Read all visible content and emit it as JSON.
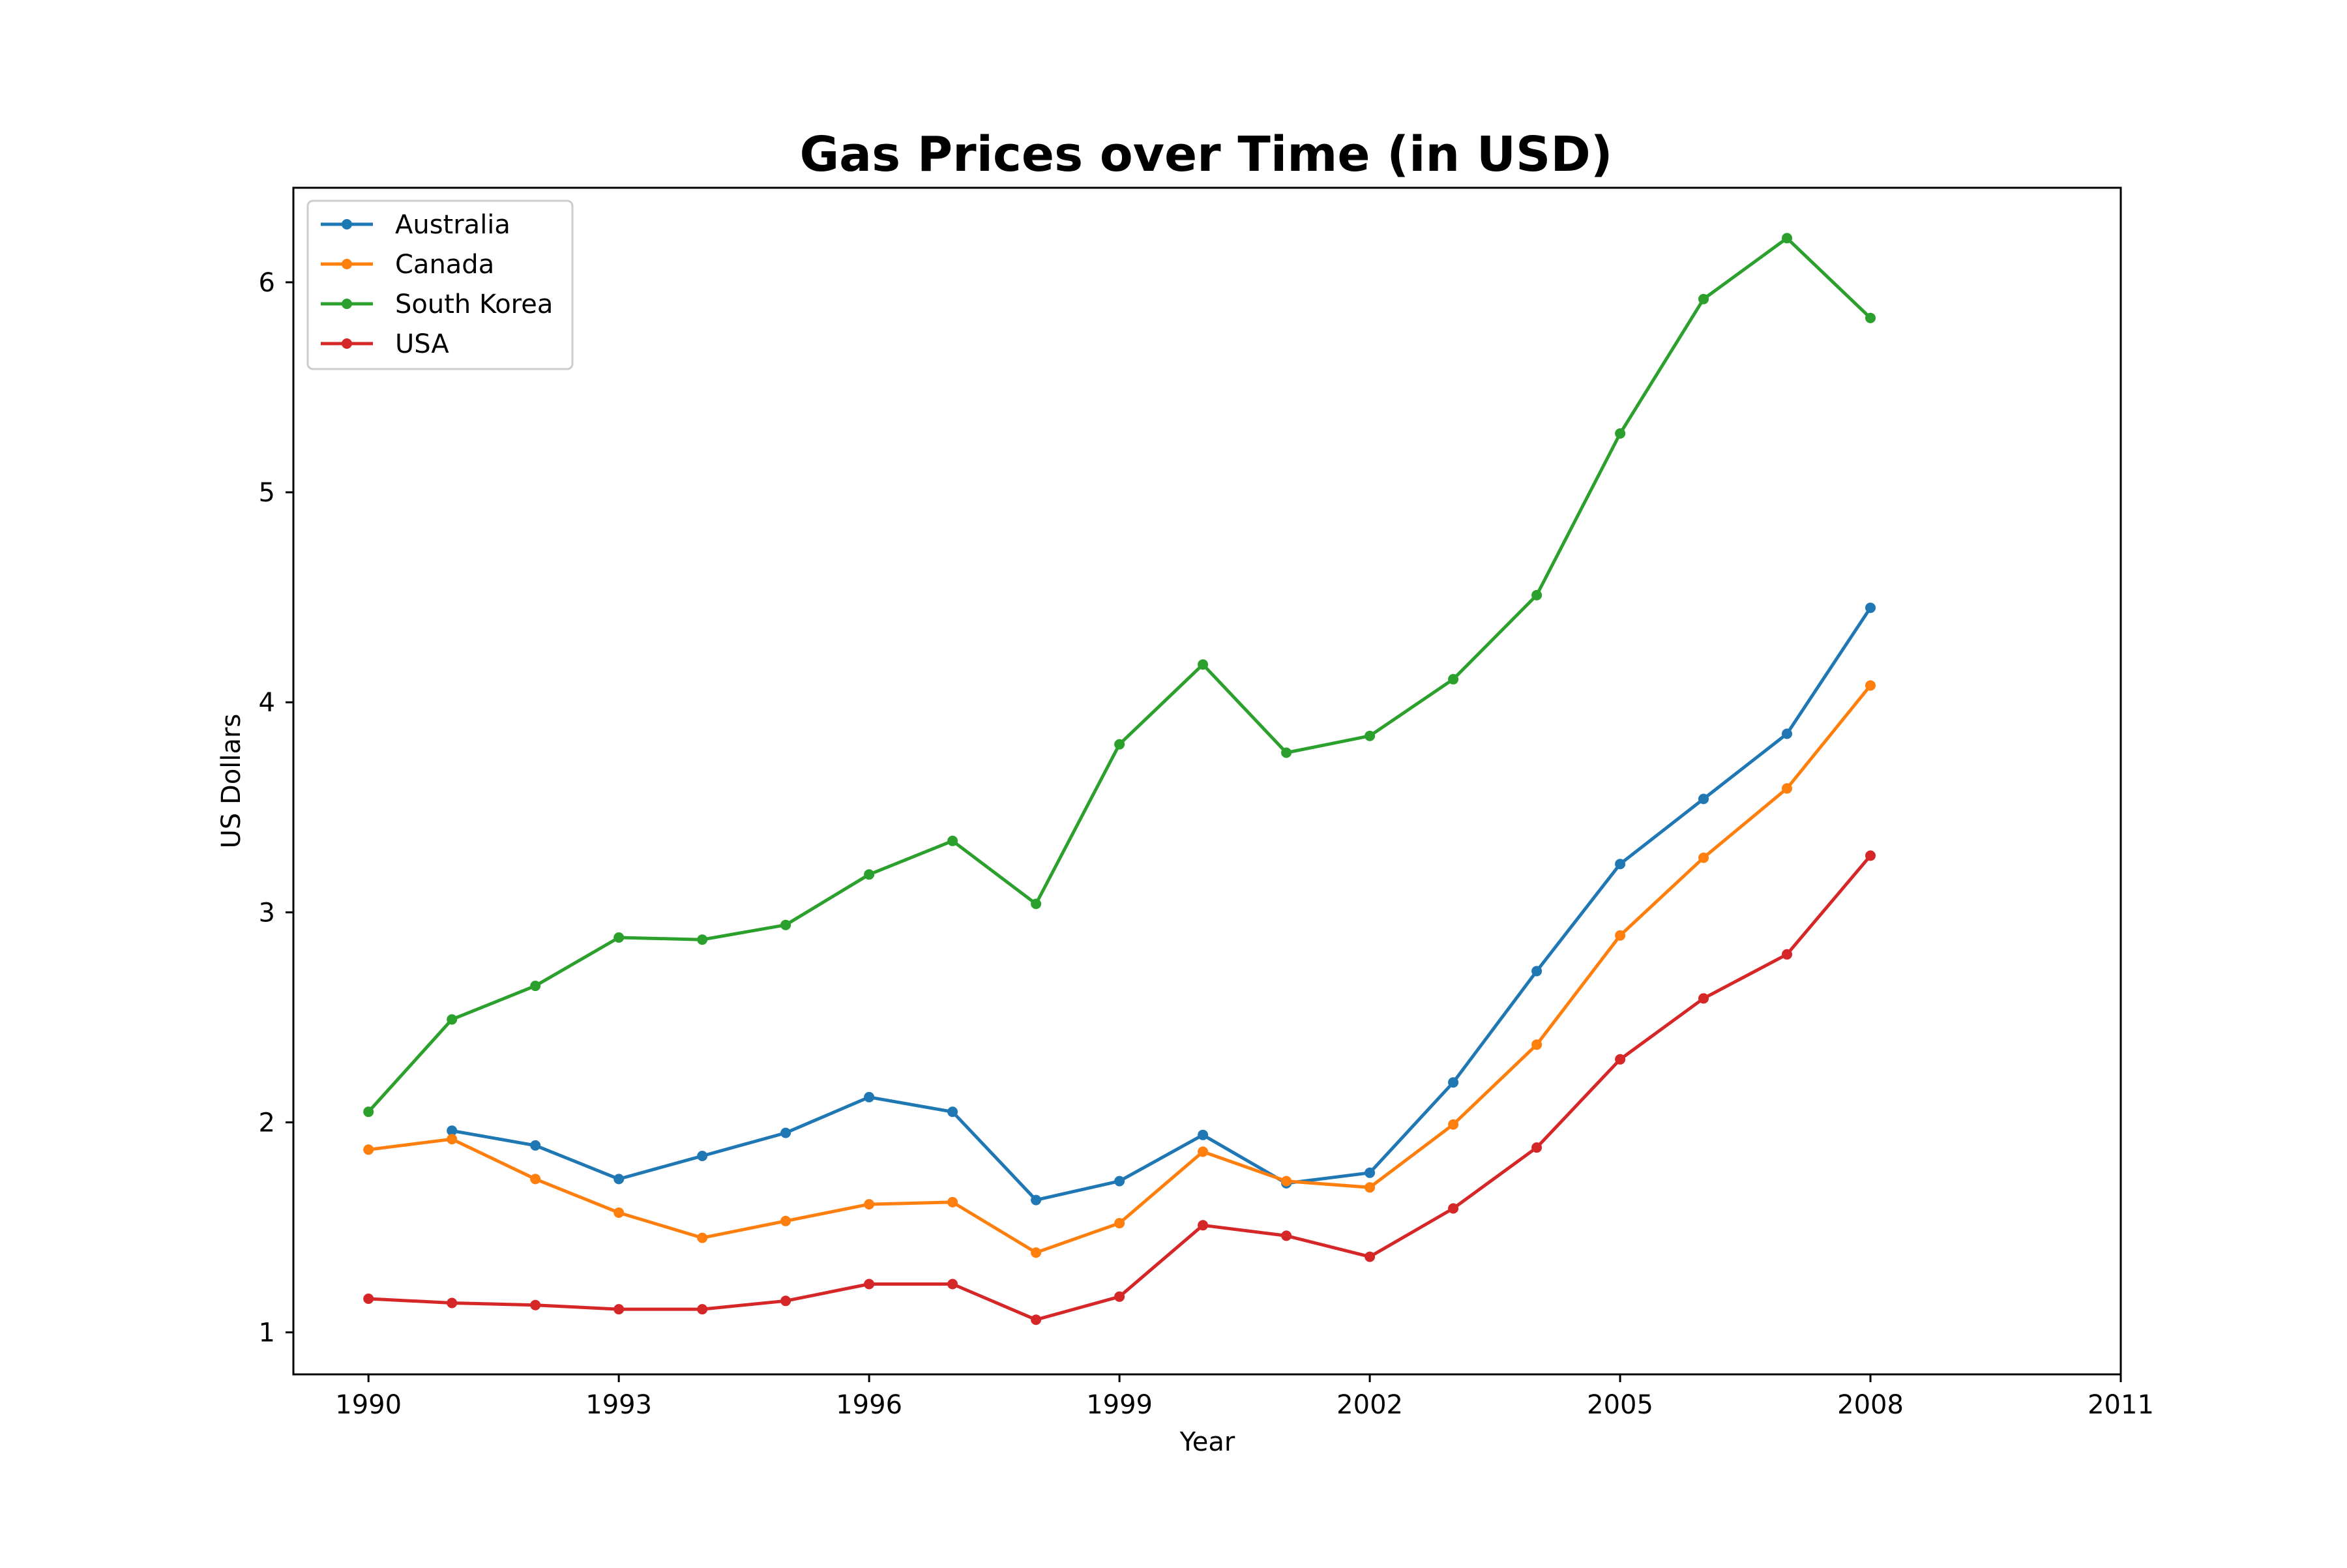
{
  "chart_data": {
    "type": "line",
    "title": "Gas Prices over Time (in USD)",
    "xlabel": "Year",
    "ylabel": "US Dollars",
    "xlim": [
      1989.1,
      2011
    ],
    "ylim": [
      0.8,
      6.45
    ],
    "x_ticks": [
      1990,
      1993,
      1996,
      1999,
      2002,
      2005,
      2008,
      2011
    ],
    "x_tick_labels": [
      "1990",
      "1993",
      "1996",
      "1999",
      "2002",
      "2005",
      "2008",
      "2011"
    ],
    "y_ticks": [
      1,
      2,
      3,
      4,
      5,
      6
    ],
    "y_tick_labels": [
      "1",
      "2",
      "3",
      "4",
      "5",
      "6"
    ],
    "grid": false,
    "legend_position": "top-left",
    "x": [
      1990,
      1991,
      1992,
      1993,
      1994,
      1995,
      1996,
      1997,
      1998,
      1999,
      2000,
      2001,
      2002,
      2003,
      2004,
      2005,
      2006,
      2007,
      2008
    ],
    "series": [
      {
        "name": "Australia",
        "color": "#1f77b4",
        "values": [
          null,
          1.96,
          1.89,
          1.73,
          1.84,
          1.95,
          2.12,
          2.05,
          1.63,
          1.72,
          1.94,
          1.71,
          1.76,
          2.19,
          2.72,
          3.23,
          3.54,
          3.85,
          4.45
        ]
      },
      {
        "name": "Canada",
        "color": "#ff7f0e",
        "values": [
          1.87,
          1.92,
          1.73,
          1.57,
          1.45,
          1.53,
          1.61,
          1.62,
          1.38,
          1.52,
          1.86,
          1.72,
          1.69,
          1.99,
          2.37,
          2.89,
          3.26,
          3.59,
          4.08
        ]
      },
      {
        "name": "South Korea",
        "color": "#2ca02c",
        "values": [
          2.05,
          2.49,
          2.65,
          2.88,
          2.87,
          2.94,
          3.18,
          3.34,
          3.04,
          3.8,
          4.18,
          3.76,
          3.84,
          4.11,
          4.51,
          5.28,
          5.92,
          6.21,
          5.83
        ]
      },
      {
        "name": "USA",
        "color": "#d62728",
        "values": [
          1.16,
          1.14,
          1.13,
          1.11,
          1.11,
          1.15,
          1.23,
          1.23,
          1.06,
          1.17,
          1.51,
          1.46,
          1.36,
          1.59,
          1.88,
          2.3,
          2.59,
          2.8,
          3.27
        ]
      }
    ]
  }
}
